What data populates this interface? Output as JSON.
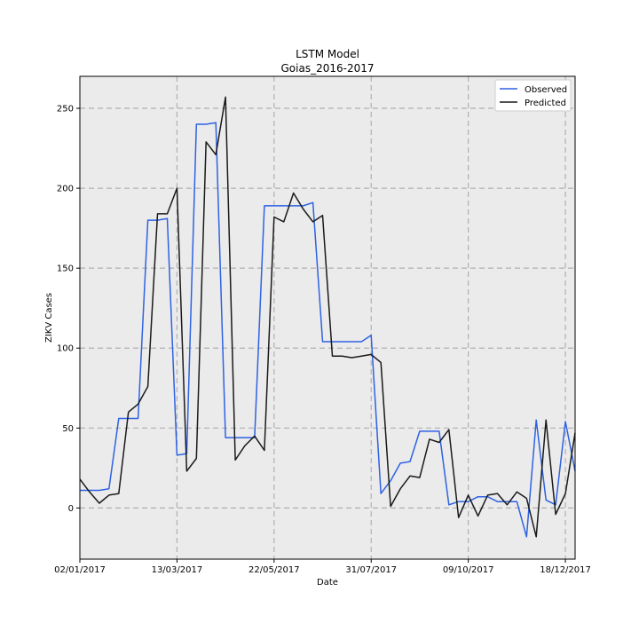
{
  "chart_data": {
    "type": "line",
    "title": "LSTM Model",
    "subtitle": "Goias_2016-2017",
    "xlabel": "Date",
    "ylabel": "ZIKV Cases",
    "x_ticks": [
      "02/01/2017",
      "13/03/2017",
      "22/05/2017",
      "31/07/2017",
      "09/10/2017",
      "18/12/2017"
    ],
    "y_ticks": [
      0,
      50,
      100,
      150,
      200,
      250
    ],
    "xlim_weeks": [
      0,
      51
    ],
    "ylim": [
      -32,
      270
    ],
    "grid": true,
    "legend_position": "top-right",
    "background": "#ebebeb",
    "series": [
      {
        "name": "Observed",
        "color": "#2e62e3",
        "values": [
          11,
          11,
          11,
          12,
          56,
          56,
          56,
          180,
          180,
          181,
          33,
          34,
          240,
          240,
          241,
          44,
          44,
          44,
          44,
          189,
          189,
          189,
          189,
          189,
          191,
          104,
          104,
          104,
          104,
          104,
          108,
          9,
          17,
          28,
          29,
          48,
          48,
          48,
          2,
          4,
          4,
          7,
          7,
          4,
          4,
          4,
          -18,
          55,
          5,
          2,
          54,
          23
        ]
      },
      {
        "name": "Predicted",
        "color": "#1a1a1a",
        "values": [
          18,
          10,
          3,
          8,
          9,
          60,
          65,
          76,
          184,
          184,
          200,
          23,
          31,
          229,
          221,
          257,
          30,
          39,
          45,
          36,
          182,
          179,
          197,
          187,
          179,
          183,
          95,
          95,
          94,
          95,
          96,
          91,
          1,
          12,
          20,
          19,
          43,
          41,
          49,
          -6,
          8,
          -5,
          8,
          9,
          2,
          10,
          6,
          -18,
          55,
          -4,
          9,
          47
        ]
      }
    ]
  }
}
